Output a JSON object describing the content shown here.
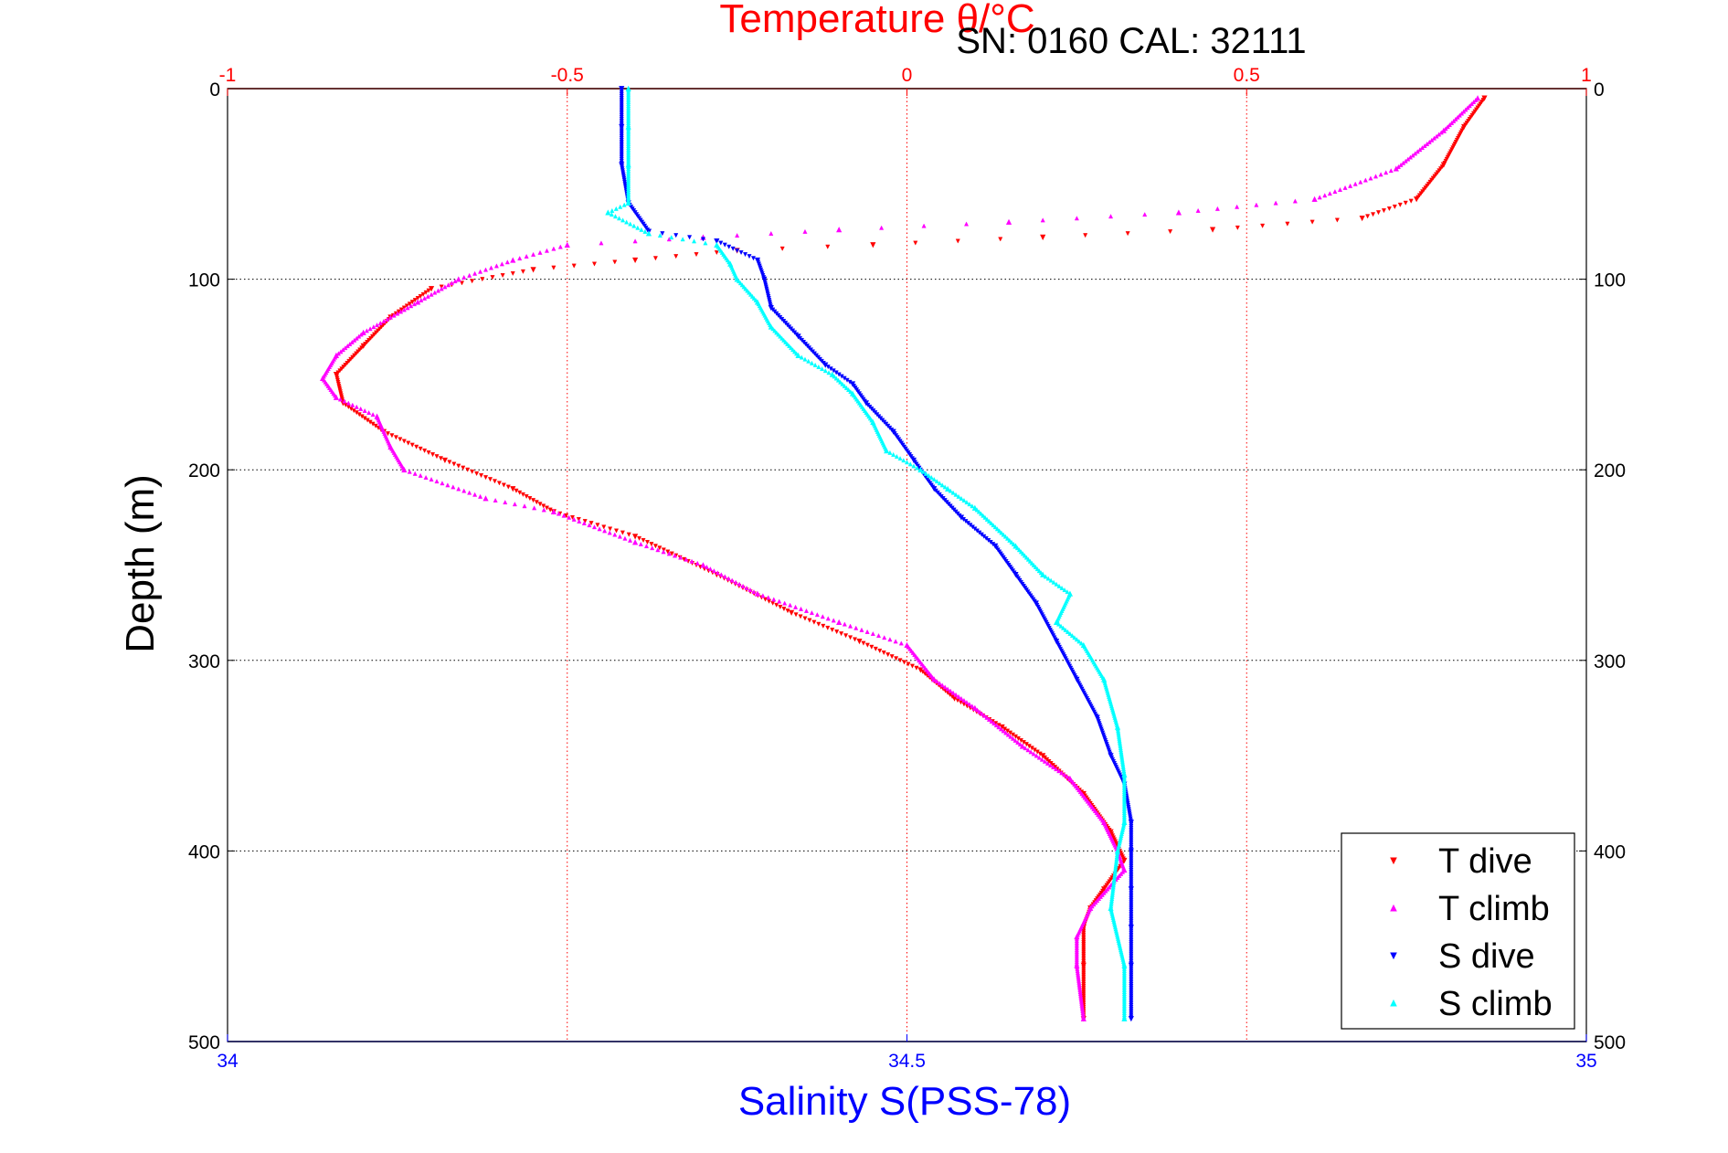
{
  "chart_data": {
    "type": "scatter",
    "title": "Temperature θ/°C",
    "annotation": "SN: 0160  CAL: 32111",
    "ylabel": "Depth (m)",
    "xlabel": "Salinity S(PSS-78)",
    "y_axis": {
      "ylim": [
        0,
        500
      ],
      "reversed": true,
      "ticks": [
        "0",
        "100",
        "200",
        "300",
        "400",
        "500"
      ],
      "tick_values": [
        0,
        100,
        200,
        300,
        400,
        500
      ]
    },
    "top_axis": {
      "name": "Temperature",
      "xlim": [
        -1,
        1
      ],
      "ticks": [
        "-1",
        "-0.5",
        "0",
        "0.5",
        "1"
      ],
      "tick_values": [
        -1,
        -0.5,
        0,
        0.5,
        1
      ],
      "color": "#ff0000"
    },
    "bottom_axis": {
      "name": "Salinity",
      "xlim": [
        34,
        35
      ],
      "ticks": [
        "34",
        "34.5",
        "35"
      ],
      "tick_values": [
        34,
        34.5,
        35
      ],
      "color": "#0000ff"
    },
    "grid": true,
    "legend_position": "bottom-right",
    "series": [
      {
        "name": "T dive",
        "axis": "temperature",
        "color": "#ff0000",
        "marker": "triangle-down",
        "points": [
          [
            0.85,
            5
          ],
          [
            0.82,
            20
          ],
          [
            0.79,
            40
          ],
          [
            0.75,
            58
          ],
          [
            0.67,
            68
          ],
          [
            0.45,
            74
          ],
          [
            0.2,
            78
          ],
          [
            -0.05,
            82
          ],
          [
            -0.25,
            85
          ],
          [
            -0.4,
            90
          ],
          [
            -0.55,
            95
          ],
          [
            -0.7,
            105
          ],
          [
            -0.76,
            120
          ],
          [
            -0.8,
            135
          ],
          [
            -0.84,
            150
          ],
          [
            -0.83,
            165
          ],
          [
            -0.77,
            180
          ],
          [
            -0.68,
            195
          ],
          [
            -0.58,
            210
          ],
          [
            -0.52,
            222
          ],
          [
            -0.4,
            235
          ],
          [
            -0.28,
            255
          ],
          [
            -0.17,
            275
          ],
          [
            -0.07,
            290
          ],
          [
            0.02,
            305
          ],
          [
            0.07,
            320
          ],
          [
            0.14,
            335
          ],
          [
            0.2,
            350
          ],
          [
            0.26,
            370
          ],
          [
            0.3,
            390
          ],
          [
            0.32,
            405
          ],
          [
            0.29,
            420
          ],
          [
            0.27,
            430
          ],
          [
            0.26,
            440
          ],
          [
            0.26,
            460
          ],
          [
            0.26,
            488
          ]
        ]
      },
      {
        "name": "T climb",
        "axis": "temperature",
        "color": "#ff00ff",
        "marker": "triangle-up",
        "points": [
          [
            0.84,
            5
          ],
          [
            0.79,
            22
          ],
          [
            0.72,
            42
          ],
          [
            0.6,
            58
          ],
          [
            0.4,
            65
          ],
          [
            0.15,
            70
          ],
          [
            -0.1,
            74
          ],
          [
            -0.3,
            78
          ],
          [
            -0.5,
            82
          ],
          [
            -0.58,
            90
          ],
          [
            -0.66,
            100
          ],
          [
            -0.72,
            112
          ],
          [
            -0.8,
            128
          ],
          [
            -0.84,
            140
          ],
          [
            -0.86,
            152
          ],
          [
            -0.84,
            162
          ],
          [
            -0.78,
            172
          ],
          [
            -0.76,
            188
          ],
          [
            -0.74,
            200
          ],
          [
            -0.62,
            215
          ],
          [
            -0.52,
            222
          ],
          [
            -0.4,
            238
          ],
          [
            -0.3,
            250
          ],
          [
            -0.22,
            265
          ],
          [
            -0.1,
            280
          ],
          [
            0,
            292
          ],
          [
            0.04,
            310
          ],
          [
            0.1,
            325
          ],
          [
            0.17,
            345
          ],
          [
            0.24,
            362
          ],
          [
            0.29,
            385
          ],
          [
            0.31,
            400
          ],
          [
            0.32,
            410
          ],
          [
            0.27,
            430
          ],
          [
            0.25,
            445
          ],
          [
            0.25,
            460
          ],
          [
            0.26,
            488
          ]
        ]
      },
      {
        "name": "S dive",
        "axis": "salinity",
        "color": "#0000ff",
        "marker": "triangle-down",
        "points": [
          [
            34.29,
            0
          ],
          [
            34.29,
            20
          ],
          [
            34.29,
            40
          ],
          [
            34.295,
            60
          ],
          [
            34.31,
            75
          ],
          [
            34.36,
            80
          ],
          [
            34.39,
            90
          ],
          [
            34.395,
            100
          ],
          [
            34.4,
            115
          ],
          [
            34.42,
            130
          ],
          [
            34.44,
            145
          ],
          [
            34.46,
            155
          ],
          [
            34.47,
            165
          ],
          [
            34.49,
            180
          ],
          [
            34.505,
            195
          ],
          [
            34.52,
            210
          ],
          [
            34.54,
            225
          ],
          [
            34.565,
            240
          ],
          [
            34.58,
            255
          ],
          [
            34.595,
            270
          ],
          [
            34.61,
            290
          ],
          [
            34.625,
            310
          ],
          [
            34.64,
            330
          ],
          [
            34.65,
            350
          ],
          [
            34.66,
            365
          ],
          [
            34.665,
            385
          ],
          [
            34.665,
            400
          ],
          [
            34.665,
            420
          ],
          [
            34.665,
            440
          ],
          [
            34.665,
            460
          ],
          [
            34.665,
            488
          ]
        ]
      },
      {
        "name": "S climb",
        "axis": "salinity",
        "color": "#00ffff",
        "marker": "triangle-up",
        "points": [
          [
            34.295,
            0
          ],
          [
            34.295,
            20
          ],
          [
            34.295,
            40
          ],
          [
            34.295,
            60
          ],
          [
            34.28,
            65
          ],
          [
            34.31,
            76
          ],
          [
            34.36,
            82
          ],
          [
            34.37,
            92
          ],
          [
            34.375,
            100
          ],
          [
            34.39,
            112
          ],
          [
            34.4,
            125
          ],
          [
            34.42,
            140
          ],
          [
            34.445,
            150
          ],
          [
            34.46,
            160
          ],
          [
            34.475,
            175
          ],
          [
            34.485,
            190
          ],
          [
            34.51,
            200
          ],
          [
            34.53,
            210
          ],
          [
            34.55,
            220
          ],
          [
            34.58,
            240
          ],
          [
            34.6,
            255
          ],
          [
            34.62,
            265
          ],
          [
            34.61,
            280
          ],
          [
            34.63,
            292
          ],
          [
            34.645,
            310
          ],
          [
            34.655,
            335
          ],
          [
            34.66,
            360
          ],
          [
            34.66,
            385
          ],
          [
            34.655,
            400
          ],
          [
            34.65,
            430
          ],
          [
            34.66,
            460
          ],
          [
            34.66,
            488
          ]
        ]
      }
    ]
  }
}
